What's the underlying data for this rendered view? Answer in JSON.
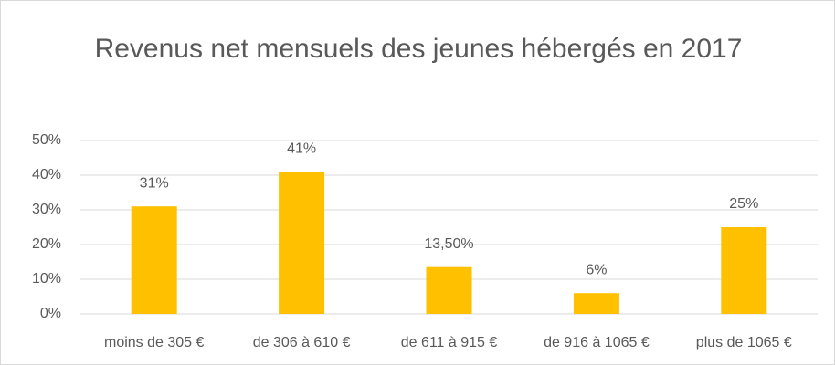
{
  "chart_data": {
    "type": "bar",
    "title": "Revenus net mensuels des jeunes hébergés en 2017",
    "categories": [
      "moins de 305 €",
      "de 306 à 610 €",
      "de 611 à 915 €",
      "de 916 à 1065 €",
      "plus de 1065 €"
    ],
    "values": [
      31,
      41,
      13.5,
      6,
      25
    ],
    "value_labels": [
      "31%",
      "41%",
      "13,50%",
      "6%",
      "25%"
    ],
    "color": "#ffc000",
    "ylim": [
      0,
      50
    ],
    "yticks": [
      {
        "value": 0,
        "label": "0%"
      },
      {
        "value": 10,
        "label": "10%"
      },
      {
        "value": 20,
        "label": "20%"
      },
      {
        "value": 30,
        "label": "30%"
      },
      {
        "value": 40,
        "label": "40%"
      },
      {
        "value": 50,
        "label": "50%"
      }
    ],
    "grid": true
  }
}
